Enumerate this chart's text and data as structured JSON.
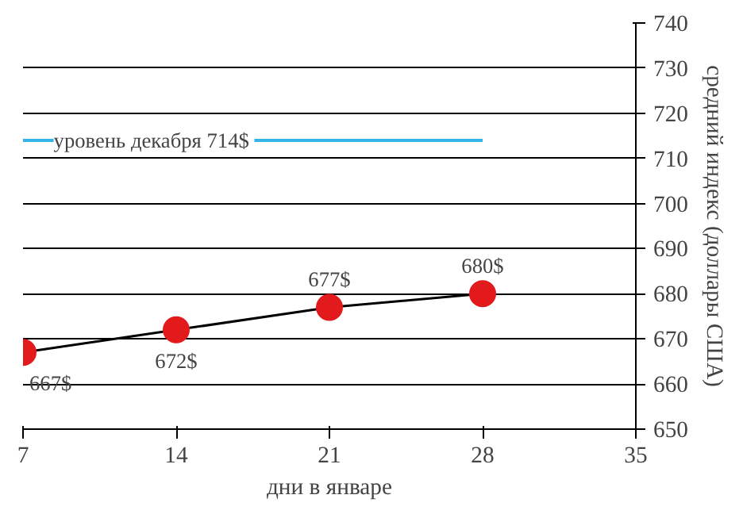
{
  "chart_data": {
    "type": "line",
    "xlabel": "дни в январе",
    "ylabel": "средний индекс (доллары США)",
    "x": [
      7,
      14,
      21,
      28
    ],
    "series": [
      {
        "color": "#e31a1c",
        "values": [
          667,
          672,
          677,
          680
        ],
        "value_labels": [
          "667$",
          "672$",
          "677$",
          "680$"
        ]
      }
    ],
    "marker": "circle",
    "xlim": [
      7,
      35
    ],
    "ylim": [
      650,
      740
    ],
    "xticks": [
      7,
      14,
      21,
      28,
      35
    ],
    "yticks": [
      650,
      660,
      670,
      680,
      690,
      700,
      710,
      720,
      730,
      740
    ],
    "grid": "y",
    "ref_lines": [
      {
        "axis": "y",
        "value": 714,
        "label": "уровень декабря  714$",
        "color": "#33b5e5"
      }
    ]
  }
}
